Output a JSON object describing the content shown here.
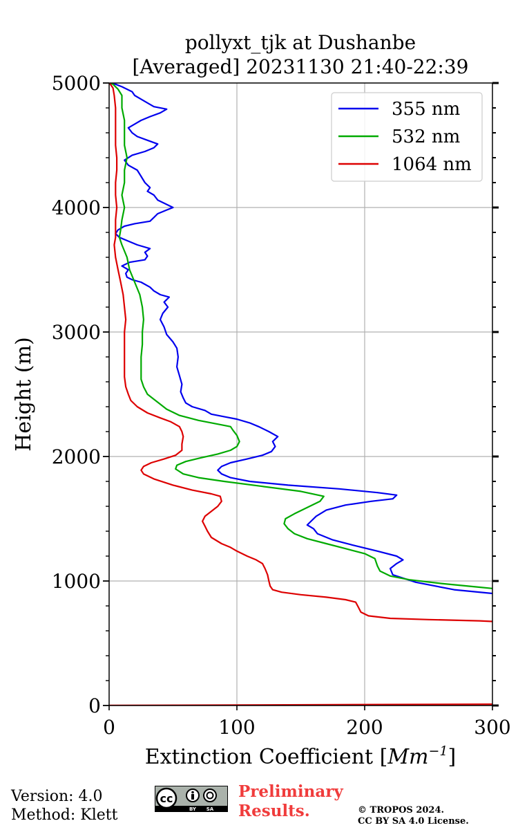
{
  "chart_data": {
    "type": "line",
    "title_lines": [
      "pollyxt_tjk at Dushanbe",
      "[Averaged] 20231130 21:40-22:39"
    ],
    "xlabel": "Extinction Coefficient [Mm⁻¹]",
    "xlabel_parts": {
      "text": "Extinction Coefficient [",
      "unit_base": "Mm",
      "unit_exp": "−1",
      "suffix": "]"
    },
    "ylabel": "Height (m)",
    "xlim": [
      0,
      300
    ],
    "ylim": [
      0,
      5000
    ],
    "xticks": [
      0,
      100,
      200,
      300
    ],
    "xtick_labels": [
      "0",
      "100",
      "200",
      "300"
    ],
    "yticks": [
      0,
      1000,
      2000,
      3000,
      4000,
      5000
    ],
    "ytick_labels": [
      "0",
      "1000",
      "2000",
      "3000",
      "4000",
      "5000"
    ],
    "grid": true,
    "legend_position": "top-right",
    "series": [
      {
        "name": "355 nm",
        "color": "#0000ee",
        "points": [
          [
            310,
            890
          ],
          [
            300,
            900
          ],
          [
            270,
            930
          ],
          [
            240,
            990
          ],
          [
            222,
            1050
          ],
          [
            220,
            1100
          ],
          [
            225,
            1140
          ],
          [
            230,
            1170
          ],
          [
            225,
            1200
          ],
          [
            210,
            1240
          ],
          [
            190,
            1290
          ],
          [
            175,
            1330
          ],
          [
            163,
            1380
          ],
          [
            160,
            1420
          ],
          [
            155,
            1450
          ],
          [
            158,
            1480
          ],
          [
            162,
            1520
          ],
          [
            170,
            1570
          ],
          [
            185,
            1610
          ],
          [
            205,
            1640
          ],
          [
            222,
            1660
          ],
          [
            225,
            1690
          ],
          [
            210,
            1710
          ],
          [
            180,
            1740
          ],
          [
            140,
            1770
          ],
          [
            110,
            1800
          ],
          [
            95,
            1830
          ],
          [
            88,
            1860
          ],
          [
            85,
            1890
          ],
          [
            88,
            1920
          ],
          [
            95,
            1950
          ],
          [
            108,
            1980
          ],
          [
            120,
            2010
          ],
          [
            127,
            2040
          ],
          [
            130,
            2080
          ],
          [
            128,
            2120
          ],
          [
            132,
            2160
          ],
          [
            125,
            2200
          ],
          [
            117,
            2240
          ],
          [
            110,
            2270
          ],
          [
            100,
            2300
          ],
          [
            90,
            2320
          ],
          [
            80,
            2340
          ],
          [
            75,
            2370
          ],
          [
            65,
            2400
          ],
          [
            60,
            2430
          ],
          [
            58,
            2470
          ],
          [
            56,
            2520
          ],
          [
            57,
            2580
          ],
          [
            55,
            2650
          ],
          [
            53,
            2720
          ],
          [
            54,
            2800
          ],
          [
            53,
            2870
          ],
          [
            50,
            2920
          ],
          [
            45,
            2980
          ],
          [
            43,
            3040
          ],
          [
            40,
            3100
          ],
          [
            42,
            3150
          ],
          [
            46,
            3200
          ],
          [
            43,
            3240
          ],
          [
            47,
            3280
          ],
          [
            40,
            3300
          ],
          [
            35,
            3330
          ],
          [
            32,
            3360
          ],
          [
            25,
            3400
          ],
          [
            18,
            3420
          ],
          [
            14,
            3440
          ],
          [
            13,
            3470
          ],
          [
            15,
            3500
          ],
          [
            10,
            3530
          ],
          [
            16,
            3560
          ],
          [
            28,
            3580
          ],
          [
            30,
            3610
          ],
          [
            28,
            3640
          ],
          [
            32,
            3670
          ],
          [
            22,
            3700
          ],
          [
            15,
            3730
          ],
          [
            8,
            3760
          ],
          [
            5,
            3790
          ],
          [
            7,
            3820
          ],
          [
            12,
            3850
          ],
          [
            20,
            3870
          ],
          [
            32,
            3890
          ],
          [
            35,
            3920
          ],
          [
            38,
            3950
          ],
          [
            45,
            3980
          ],
          [
            50,
            4000
          ],
          [
            44,
            4030
          ],
          [
            38,
            4060
          ],
          [
            35,
            4100
          ],
          [
            30,
            4130
          ],
          [
            32,
            4160
          ],
          [
            28,
            4200
          ],
          [
            25,
            4250
          ],
          [
            22,
            4300
          ],
          [
            15,
            4340
          ],
          [
            12,
            4380
          ],
          [
            18,
            4420
          ],
          [
            28,
            4450
          ],
          [
            35,
            4480
          ],
          [
            38,
            4510
          ],
          [
            30,
            4540
          ],
          [
            22,
            4570
          ],
          [
            18,
            4600
          ],
          [
            15,
            4640
          ],
          [
            20,
            4670
          ],
          [
            25,
            4700
          ],
          [
            32,
            4730
          ],
          [
            40,
            4760
          ],
          [
            45,
            4790
          ],
          [
            35,
            4810
          ],
          [
            30,
            4840
          ],
          [
            25,
            4870
          ],
          [
            20,
            4900
          ],
          [
            18,
            4930
          ],
          [
            14,
            4950
          ],
          [
            10,
            4970
          ],
          [
            5,
            4990
          ],
          [
            0,
            5000
          ]
        ]
      },
      {
        "name": "532 nm",
        "color": "#00aa00",
        "points": [
          [
            310,
            930
          ],
          [
            290,
            950
          ],
          [
            260,
            980
          ],
          [
            235,
            1010
          ],
          [
            220,
            1040
          ],
          [
            212,
            1080
          ],
          [
            210,
            1120
          ],
          [
            208,
            1180
          ],
          [
            200,
            1220
          ],
          [
            185,
            1260
          ],
          [
            170,
            1300
          ],
          [
            155,
            1340
          ],
          [
            145,
            1380
          ],
          [
            140,
            1420
          ],
          [
            137,
            1460
          ],
          [
            138,
            1500
          ],
          [
            145,
            1540
          ],
          [
            155,
            1590
          ],
          [
            165,
            1640
          ],
          [
            168,
            1680
          ],
          [
            150,
            1720
          ],
          [
            120,
            1760
          ],
          [
            90,
            1800
          ],
          [
            70,
            1830
          ],
          [
            58,
            1860
          ],
          [
            52,
            1900
          ],
          [
            53,
            1930
          ],
          [
            60,
            1960
          ],
          [
            72,
            1990
          ],
          [
            85,
            2020
          ],
          [
            95,
            2050
          ],
          [
            100,
            2080
          ],
          [
            102,
            2120
          ],
          [
            100,
            2170
          ],
          [
            97,
            2210
          ],
          [
            95,
            2240
          ],
          [
            85,
            2260
          ],
          [
            70,
            2290
          ],
          [
            55,
            2330
          ],
          [
            45,
            2380
          ],
          [
            40,
            2420
          ],
          [
            35,
            2460
          ],
          [
            30,
            2500
          ],
          [
            27,
            2560
          ],
          [
            25,
            2620
          ],
          [
            25,
            2700
          ],
          [
            25,
            2800
          ],
          [
            26,
            2900
          ],
          [
            26,
            3000
          ],
          [
            27,
            3100
          ],
          [
            26,
            3200
          ],
          [
            24,
            3300
          ],
          [
            20,
            3400
          ],
          [
            16,
            3500
          ],
          [
            14,
            3600
          ],
          [
            10,
            3700
          ],
          [
            8,
            3760
          ],
          [
            9,
            3820
          ],
          [
            10,
            3900
          ],
          [
            12,
            4000
          ],
          [
            10,
            4100
          ],
          [
            12,
            4200
          ],
          [
            12,
            4300
          ],
          [
            14,
            4400
          ],
          [
            12,
            4500
          ],
          [
            12,
            4600
          ],
          [
            12,
            4700
          ],
          [
            10,
            4800
          ],
          [
            10,
            4900
          ],
          [
            7,
            4950
          ],
          [
            3,
            4990
          ],
          [
            0,
            5000
          ]
        ]
      },
      {
        "name": "1064 nm",
        "color": "#dd0000",
        "points": [
          [
            310,
            670
          ],
          [
            290,
            680
          ],
          [
            250,
            690
          ],
          [
            220,
            700
          ],
          [
            203,
            720
          ],
          [
            197,
            750
          ],
          [
            195,
            790
          ],
          [
            193,
            830
          ],
          [
            185,
            850
          ],
          [
            170,
            870
          ],
          [
            150,
            890
          ],
          [
            135,
            910
          ],
          [
            128,
            930
          ],
          [
            126,
            960
          ],
          [
            125,
            1000
          ],
          [
            124,
            1050
          ],
          [
            122,
            1100
          ],
          [
            120,
            1140
          ],
          [
            115,
            1170
          ],
          [
            108,
            1200
          ],
          [
            100,
            1240
          ],
          [
            95,
            1270
          ],
          [
            88,
            1300
          ],
          [
            80,
            1350
          ],
          [
            77,
            1400
          ],
          [
            75,
            1440
          ],
          [
            73,
            1480
          ],
          [
            75,
            1520
          ],
          [
            80,
            1560
          ],
          [
            85,
            1600
          ],
          [
            88,
            1640
          ],
          [
            87,
            1680
          ],
          [
            80,
            1700
          ],
          [
            65,
            1730
          ],
          [
            50,
            1770
          ],
          [
            35,
            1820
          ],
          [
            27,
            1860
          ],
          [
            25,
            1890
          ],
          [
            27,
            1920
          ],
          [
            33,
            1950
          ],
          [
            43,
            1980
          ],
          [
            52,
            2010
          ],
          [
            57,
            2050
          ],
          [
            57,
            2100
          ],
          [
            58,
            2160
          ],
          [
            57,
            2200
          ],
          [
            55,
            2240
          ],
          [
            48,
            2280
          ],
          [
            40,
            2310
          ],
          [
            30,
            2350
          ],
          [
            22,
            2400
          ],
          [
            17,
            2450
          ],
          [
            15,
            2500
          ],
          [
            13,
            2560
          ],
          [
            12,
            2640
          ],
          [
            12,
            2750
          ],
          [
            12,
            2900
          ],
          [
            12,
            3000
          ],
          [
            13,
            3100
          ],
          [
            12,
            3200
          ],
          [
            11,
            3300
          ],
          [
            9,
            3400
          ],
          [
            7,
            3500
          ],
          [
            5,
            3600
          ],
          [
            4,
            3700
          ],
          [
            5,
            3760
          ],
          [
            5,
            3800
          ],
          [
            5,
            3900
          ],
          [
            6,
            4000
          ],
          [
            5,
            4100
          ],
          [
            5,
            4200
          ],
          [
            6,
            4300
          ],
          [
            6,
            4400
          ],
          [
            5,
            4500
          ],
          [
            5,
            4600
          ],
          [
            5,
            4700
          ],
          [
            5,
            4800
          ],
          [
            4,
            4900
          ],
          [
            3,
            4960
          ],
          [
            1,
            4990
          ],
          [
            0,
            5000
          ]
        ]
      }
    ],
    "zero_line": {
      "color": "#dd0000",
      "points": [
        [
          0,
          0
        ],
        [
          300,
          10
        ]
      ]
    }
  },
  "footer": {
    "version": "Version: 4.0",
    "method": "Method: Klett",
    "preliminary_line1": "Preliminary",
    "preliminary_line2": "Results.",
    "copyright_line1": "© TROPOS 2024.",
    "copyright_line2": "CC BY SA 4.0 License.",
    "cc_badge": {
      "main": "cc",
      "by": "BY",
      "sa": "SA",
      "icon": "creative-commons-icon"
    }
  }
}
